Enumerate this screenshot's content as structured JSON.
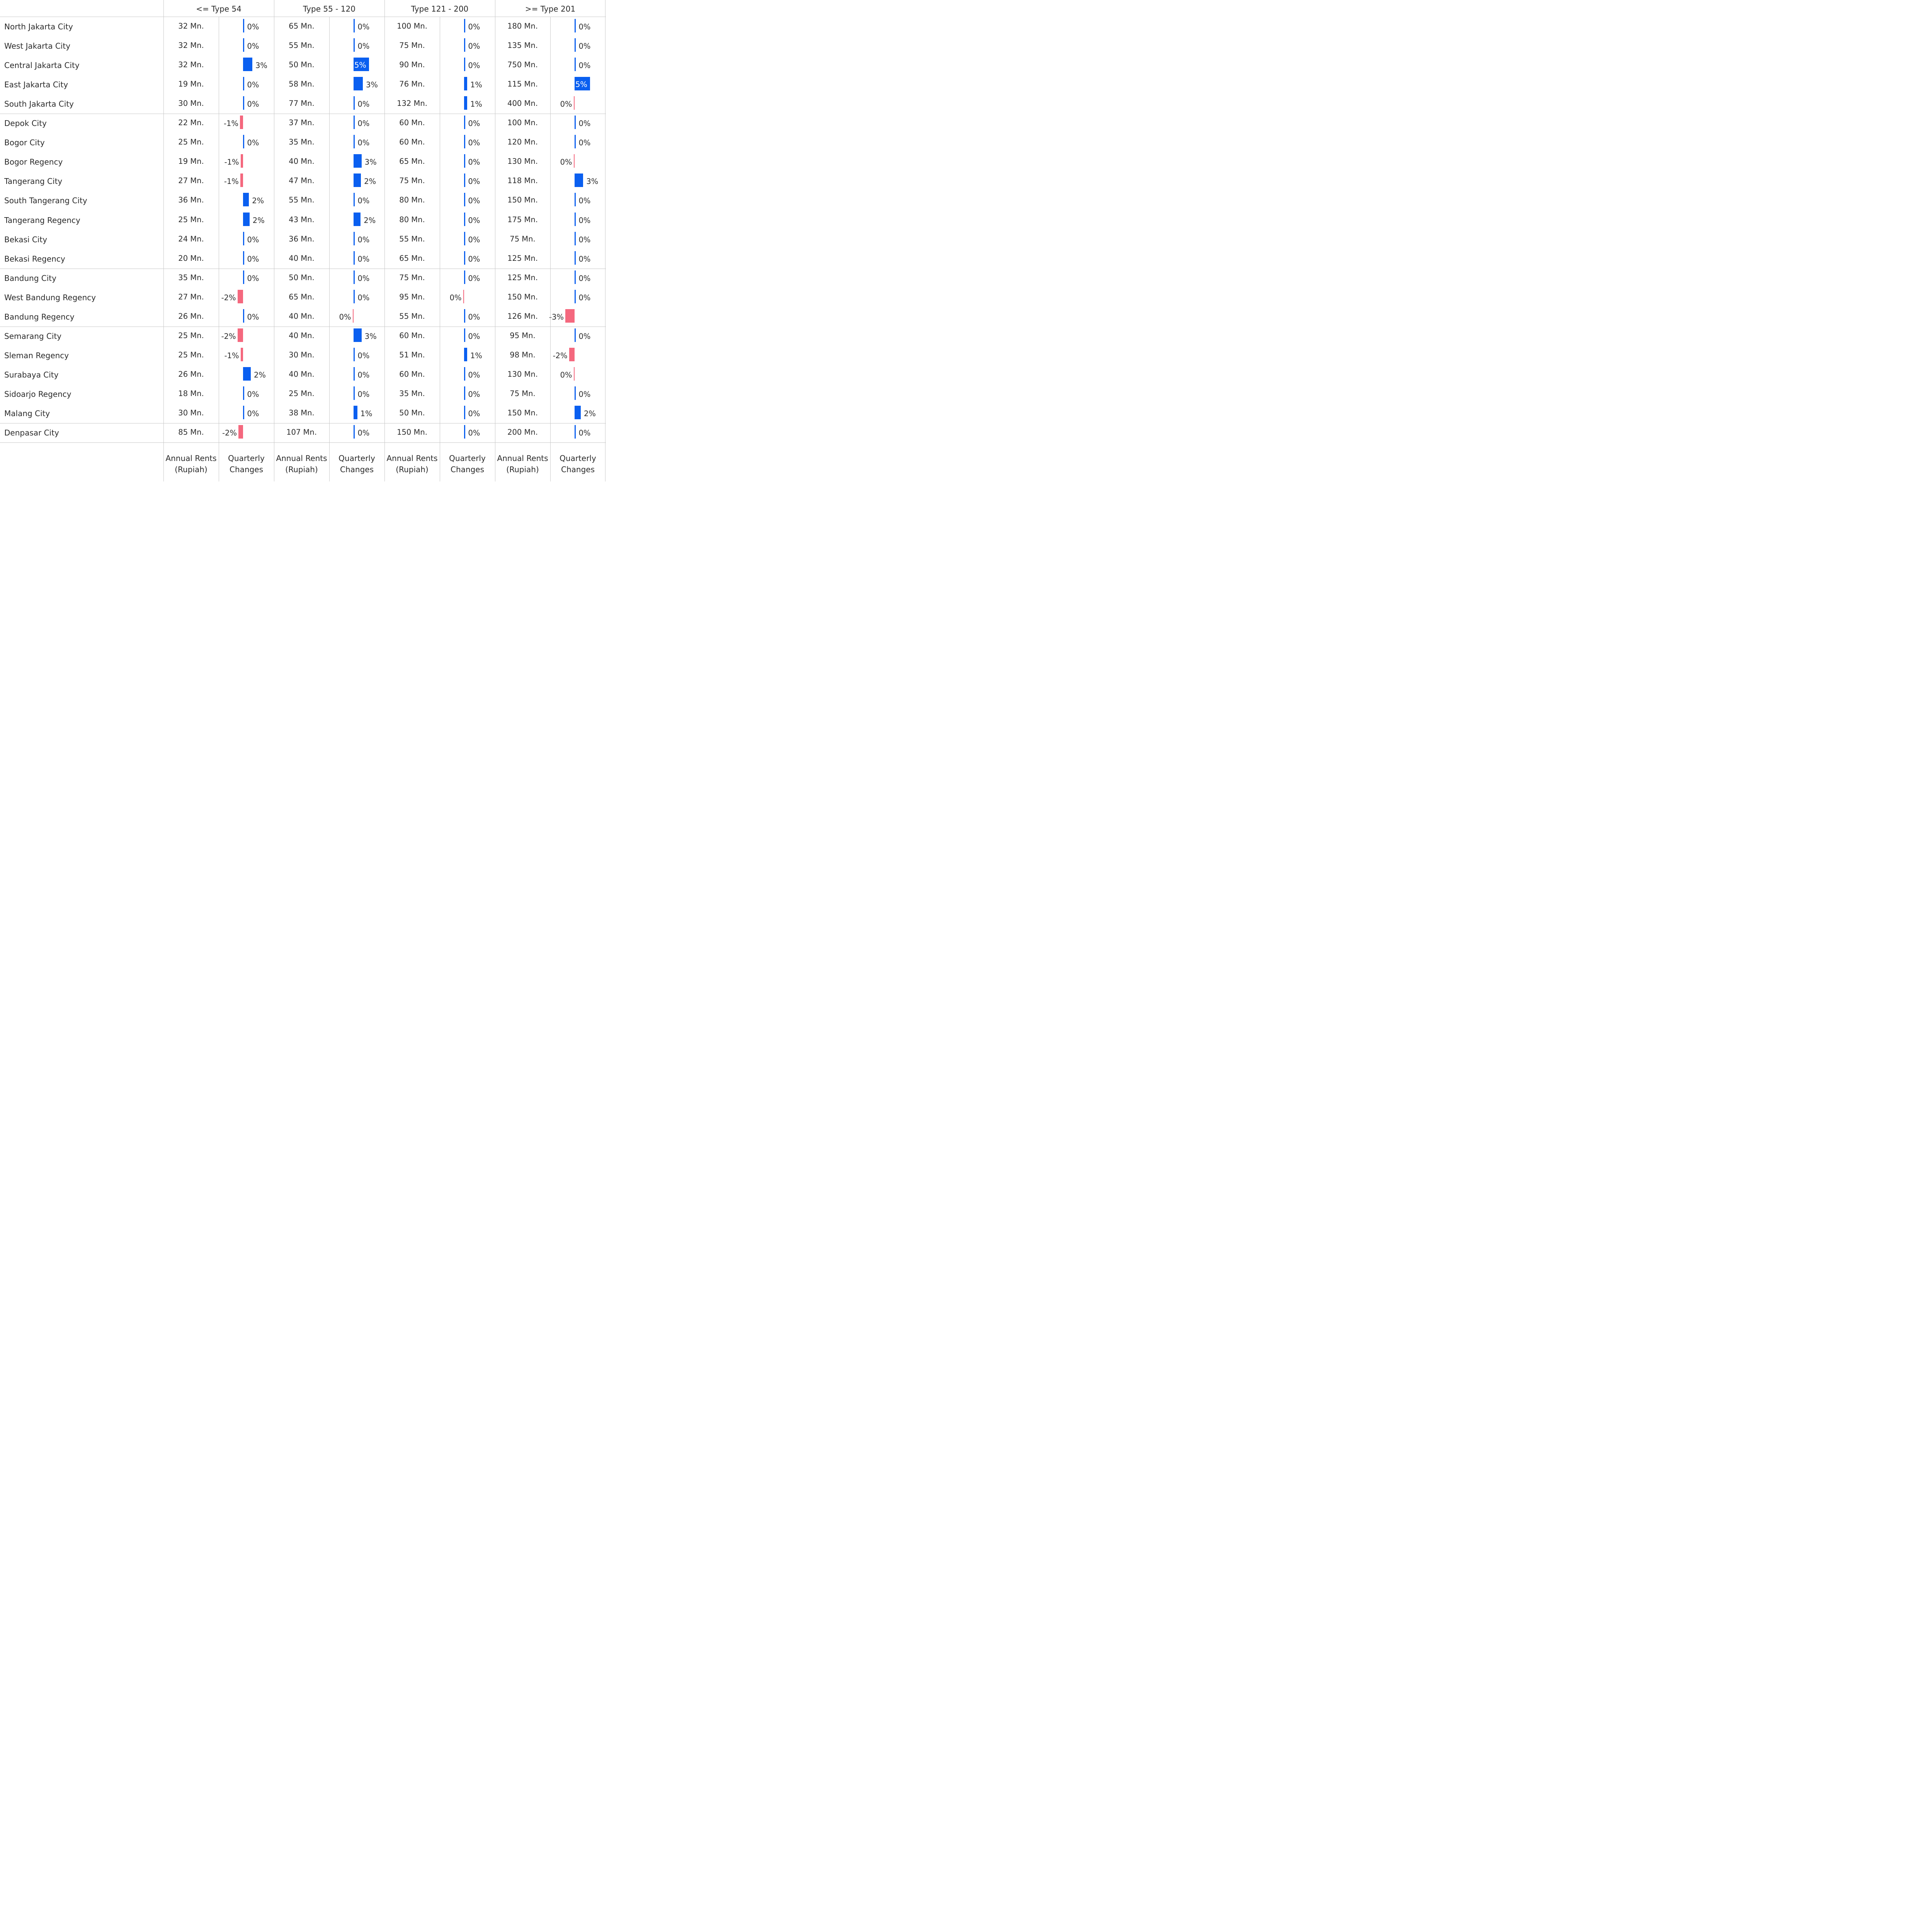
{
  "colors": {
    "positive": "#0a5ff0",
    "negative": "#f4687e",
    "grid": "#c8c8c8",
    "text": "#2b2b2b"
  },
  "chart_data": {
    "type": "table",
    "column_groups": [
      "<= Type 54",
      "Type 55 - 120",
      "Type 121 - 200",
      ">= Type 201"
    ],
    "measures": [
      {
        "line1": "Annual Rents",
        "line2": "(Rupiah)"
      },
      {
        "line1": "Quarterly",
        "line2": "Changes"
      }
    ],
    "row_groups": [
      {
        "rows": [
          {
            "city": "North Jakarta City",
            "cells": [
              [
                "32 Mn.",
                "0%",
                0
              ],
              [
                "65 Mn.",
                "0%",
                0
              ],
              [
                "100 Mn.",
                "0%",
                0
              ],
              [
                "180 Mn.",
                "0%",
                0
              ]
            ]
          },
          {
            "city": "West Jakarta City",
            "cells": [
              [
                "32 Mn.",
                "0%",
                0
              ],
              [
                "55 Mn.",
                "0%",
                0
              ],
              [
                "75 Mn.",
                "0%",
                0
              ],
              [
                "135 Mn.",
                "0%",
                0
              ]
            ]
          },
          {
            "city": "Central Jakarta City",
            "cells": [
              [
                "32 Mn.",
                "3%",
                3
              ],
              [
                "50 Mn.",
                "5%",
                5
              ],
              [
                "90 Mn.",
                "0%",
                0
              ],
              [
                "750 Mn.",
                "0%",
                0
              ]
            ]
          },
          {
            "city": "East Jakarta City",
            "cells": [
              [
                "19 Mn.",
                "0%",
                0
              ],
              [
                "58 Mn.",
                "3%",
                3
              ],
              [
                "76 Mn.",
                "1%",
                1
              ],
              [
                "115 Mn.",
                "5%",
                5
              ]
            ]
          },
          {
            "city": "South Jakarta City",
            "cells": [
              [
                "30 Mn.",
                "0%",
                0
              ],
              [
                "77 Mn.",
                "0%",
                0
              ],
              [
                "132 Mn.",
                "1%",
                1
              ],
              [
                "400 Mn.",
                "0%",
                -0.1
              ]
            ]
          }
        ]
      },
      {
        "rows": [
          {
            "city": "Depok City",
            "cells": [
              [
                "22 Mn.",
                "-1%",
                -1
              ],
              [
                "37 Mn.",
                "0%",
                0
              ],
              [
                "60 Mn.",
                "0%",
                0
              ],
              [
                "100 Mn.",
                "0%",
                0
              ]
            ]
          },
          {
            "city": "Bogor City",
            "cells": [
              [
                "25 Mn.",
                "0%",
                0
              ],
              [
                "35 Mn.",
                "0%",
                0
              ],
              [
                "60 Mn.",
                "0%",
                0
              ],
              [
                "120 Mn.",
                "0%",
                0
              ]
            ]
          },
          {
            "city": "Bogor Regency",
            "cells": [
              [
                "19 Mn.",
                "-1%",
                -0.8
              ],
              [
                "40 Mn.",
                "3%",
                2.6
              ],
              [
                "65 Mn.",
                "0%",
                0
              ],
              [
                "130 Mn.",
                "0%",
                -0.1
              ]
            ]
          },
          {
            "city": "Tangerang City",
            "cells": [
              [
                "27 Mn.",
                "-1%",
                -0.9
              ],
              [
                "47 Mn.",
                "2%",
                2.4
              ],
              [
                "75 Mn.",
                "0%",
                0
              ],
              [
                "118 Mn.",
                "3%",
                2.8
              ]
            ]
          },
          {
            "city": "South Tangerang City",
            "cells": [
              [
                "36 Mn.",
                "2%",
                1.9
              ],
              [
                "55 Mn.",
                "0%",
                0
              ],
              [
                "80 Mn.",
                "0%",
                0
              ],
              [
                "150 Mn.",
                "0%",
                0
              ]
            ]
          },
          {
            "city": "Tangerang Regency",
            "cells": [
              [
                "25 Mn.",
                "2%",
                2.1
              ],
              [
                "43 Mn.",
                "2%",
                2.3
              ],
              [
                "80 Mn.",
                "0%",
                0
              ],
              [
                "175 Mn.",
                "0%",
                0
              ]
            ]
          },
          {
            "city": "Bekasi City",
            "cells": [
              [
                "24 Mn.",
                "0%",
                0
              ],
              [
                "36 Mn.",
                "0%",
                0
              ],
              [
                "55 Mn.",
                "0%",
                0
              ],
              [
                "75 Mn.",
                "0%",
                0
              ]
            ]
          },
          {
            "city": "Bekasi Regency",
            "cells": [
              [
                "20 Mn.",
                "0%",
                0
              ],
              [
                "40 Mn.",
                "0%",
                0
              ],
              [
                "65 Mn.",
                "0%",
                0
              ],
              [
                "125 Mn.",
                "0%",
                0
              ]
            ]
          }
        ]
      },
      {
        "rows": [
          {
            "city": "Bandung City",
            "cells": [
              [
                "35 Mn.",
                "0%",
                0
              ],
              [
                "50 Mn.",
                "0%",
                0
              ],
              [
                "75 Mn.",
                "0%",
                0
              ],
              [
                "125 Mn.",
                "0%",
                0
              ]
            ]
          },
          {
            "city": "West Bandung Regency",
            "cells": [
              [
                "27 Mn.",
                "-2%",
                -1.8
              ],
              [
                "65 Mn.",
                "0%",
                0
              ],
              [
                "95 Mn.",
                "0%",
                -0.1
              ],
              [
                "150 Mn.",
                "0%",
                0
              ]
            ]
          },
          {
            "city": "Bandung Regency",
            "cells": [
              [
                "26 Mn.",
                "0%",
                0
              ],
              [
                "40 Mn.",
                "0%",
                -0.1
              ],
              [
                "55 Mn.",
                "0%",
                0
              ],
              [
                "126 Mn.",
                "-3%",
                -3
              ]
            ]
          }
        ]
      },
      {
        "rows": [
          {
            "city": "Semarang City",
            "cells": [
              [
                "25 Mn.",
                "-2%",
                -1.8
              ],
              [
                "40 Mn.",
                "3%",
                2.6
              ],
              [
                "60 Mn.",
                "0%",
                0
              ],
              [
                "95 Mn.",
                "0%",
                0
              ]
            ]
          },
          {
            "city": "Sleman Regency",
            "cells": [
              [
                "25 Mn.",
                "-1%",
                -0.8
              ],
              [
                "30 Mn.",
                "0%",
                0
              ],
              [
                "51 Mn.",
                "1%",
                1
              ],
              [
                "98 Mn.",
                "-2%",
                -1.8
              ]
            ]
          },
          {
            "city": "Surabaya City",
            "cells": [
              [
                "26 Mn.",
                "2%",
                2.5
              ],
              [
                "40 Mn.",
                "0%",
                0
              ],
              [
                "60 Mn.",
                "0%",
                0
              ],
              [
                "130 Mn.",
                "0%",
                -0.1
              ]
            ]
          },
          {
            "city": "Sidoarjo Regency",
            "cells": [
              [
                "18 Mn.",
                "0%",
                0
              ],
              [
                "25 Mn.",
                "0%",
                0
              ],
              [
                "35 Mn.",
                "0%",
                0
              ],
              [
                "75 Mn.",
                "0%",
                0
              ]
            ]
          },
          {
            "city": "Malang City",
            "cells": [
              [
                "30 Mn.",
                "0%",
                0
              ],
              [
                "38 Mn.",
                "1%",
                1.2
              ],
              [
                "50 Mn.",
                "0%",
                0
              ],
              [
                "150 Mn.",
                "2%",
                2
              ]
            ]
          }
        ]
      },
      {
        "rows": [
          {
            "city": "Denpasar City",
            "cells": [
              [
                "85 Mn.",
                "-2%",
                -1.5
              ],
              [
                "107 Mn.",
                "0%",
                0
              ],
              [
                "150 Mn.",
                "0%",
                0
              ],
              [
                "200 Mn.",
                "0%",
                0
              ]
            ]
          }
        ]
      }
    ]
  }
}
